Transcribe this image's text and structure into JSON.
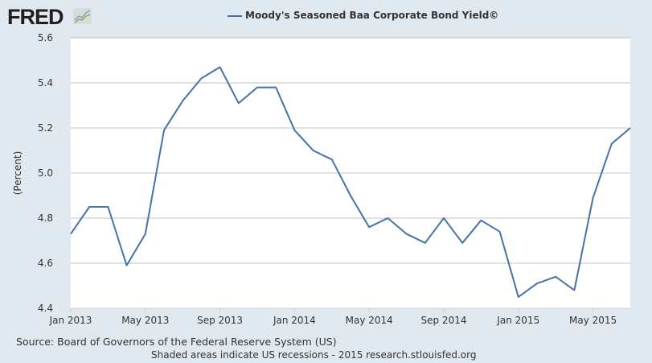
{
  "logo": "FRED",
  "chart_data": {
    "type": "line",
    "title": "Moody's Seasoned Baa Corporate Bond Yield©",
    "ylabel": "(Percent)",
    "xlabel": "",
    "ylim": [
      4.4,
      5.6
    ],
    "yticks": [
      "4.4",
      "4.6",
      "4.8",
      "5.0",
      "5.2",
      "5.4",
      "5.6"
    ],
    "xticks": [
      "Jan 2013",
      "May 2013",
      "Sep 2013",
      "Jan 2014",
      "May 2014",
      "Sep 2014",
      "Jan 2015",
      "May 2015"
    ],
    "legend": "top-center",
    "grid": true,
    "series": [
      {
        "name": "Moody's Seasoned Baa Corporate Bond Yield©",
        "color": "#4572a7",
        "x": [
          "2013-01",
          "2013-02",
          "2013-03",
          "2013-04",
          "2013-05",
          "2013-06",
          "2013-07",
          "2013-08",
          "2013-09",
          "2013-10",
          "2013-11",
          "2013-12",
          "2014-01",
          "2014-02",
          "2014-03",
          "2014-04",
          "2014-05",
          "2014-06",
          "2014-07",
          "2014-08",
          "2014-09",
          "2014-10",
          "2014-11",
          "2014-12",
          "2015-01",
          "2015-02",
          "2015-03",
          "2015-04",
          "2015-05",
          "2015-06",
          "2015-07"
        ],
        "values": [
          4.73,
          4.85,
          4.85,
          4.59,
          4.73,
          5.19,
          5.32,
          5.42,
          5.47,
          5.31,
          5.38,
          5.38,
          5.19,
          5.1,
          5.06,
          4.9,
          4.76,
          4.8,
          4.73,
          4.69,
          4.8,
          4.69,
          4.79,
          4.74,
          4.45,
          4.51,
          4.54,
          4.48,
          4.89,
          5.13,
          5.2
        ]
      }
    ]
  },
  "source": "Source: Board of Governors of the Federal Reserve System (US)",
  "note": "Shaded areas indicate US recessions - 2015 research.stlouisfed.org"
}
